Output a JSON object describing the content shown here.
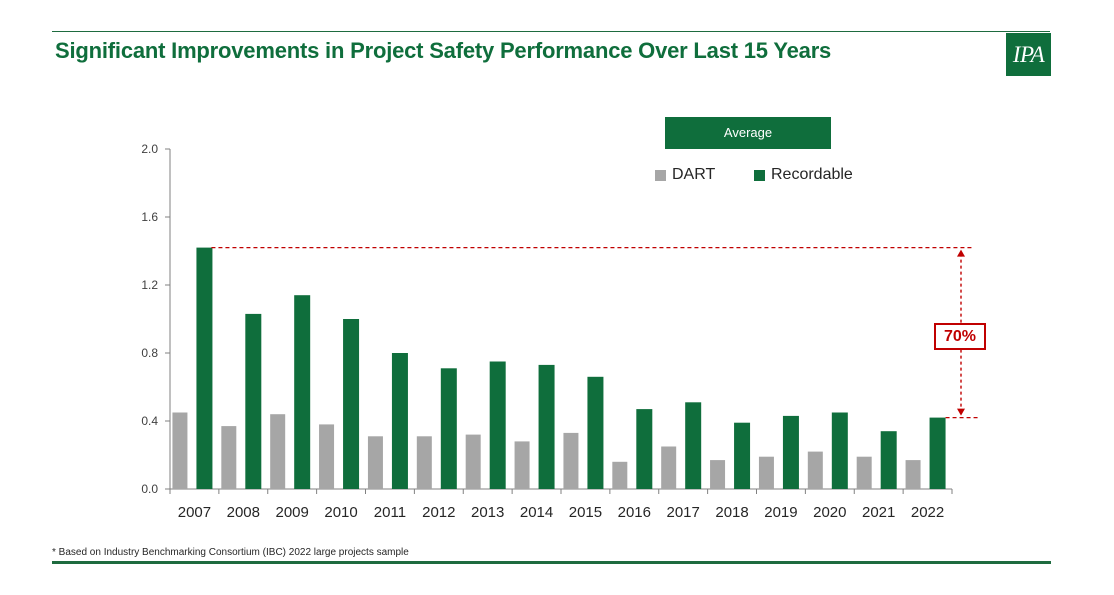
{
  "header": {
    "title": "Significant Improvements in Project Safety Performance Over Last 15 Years"
  },
  "logo": {
    "text": "IPA"
  },
  "colors": {
    "brand": "#0f6e3c",
    "dart": "#a6a6a6",
    "recordable": "#0f6e3c",
    "annotation": "#c00000"
  },
  "chart_data": {
    "type": "bar",
    "categories": [
      "2007",
      "2008",
      "2009",
      "2010",
      "2011",
      "2012",
      "2013",
      "2014",
      "2015",
      "2016",
      "2017",
      "2018",
      "2019",
      "2020",
      "2021",
      "2022"
    ],
    "series": [
      {
        "name": "DART",
        "values": [
          0.45,
          0.37,
          0.44,
          0.38,
          0.31,
          0.31,
          0.32,
          0.28,
          0.33,
          0.16,
          0.25,
          0.17,
          0.19,
          0.22,
          0.19,
          0.17
        ]
      },
      {
        "name": "Recordable",
        "values": [
          1.42,
          1.03,
          1.14,
          1.0,
          0.8,
          0.71,
          0.75,
          0.73,
          0.66,
          0.47,
          0.51,
          0.39,
          0.43,
          0.45,
          0.34,
          0.42
        ]
      }
    ],
    "ylim": [
      0,
      2.0
    ],
    "yticks": [
      "0.0",
      "0.4",
      "0.8",
      "1.2",
      "1.6",
      "2.0"
    ],
    "legend_title": "Average",
    "legend_position": "top-right",
    "grid": false,
    "annotation": {
      "label": "70%",
      "from_value": 1.42,
      "to_value": 0.42
    }
  },
  "footnote": "* Based on Industry Benchmarking Consortium (IBC) 2022 large projects sample"
}
